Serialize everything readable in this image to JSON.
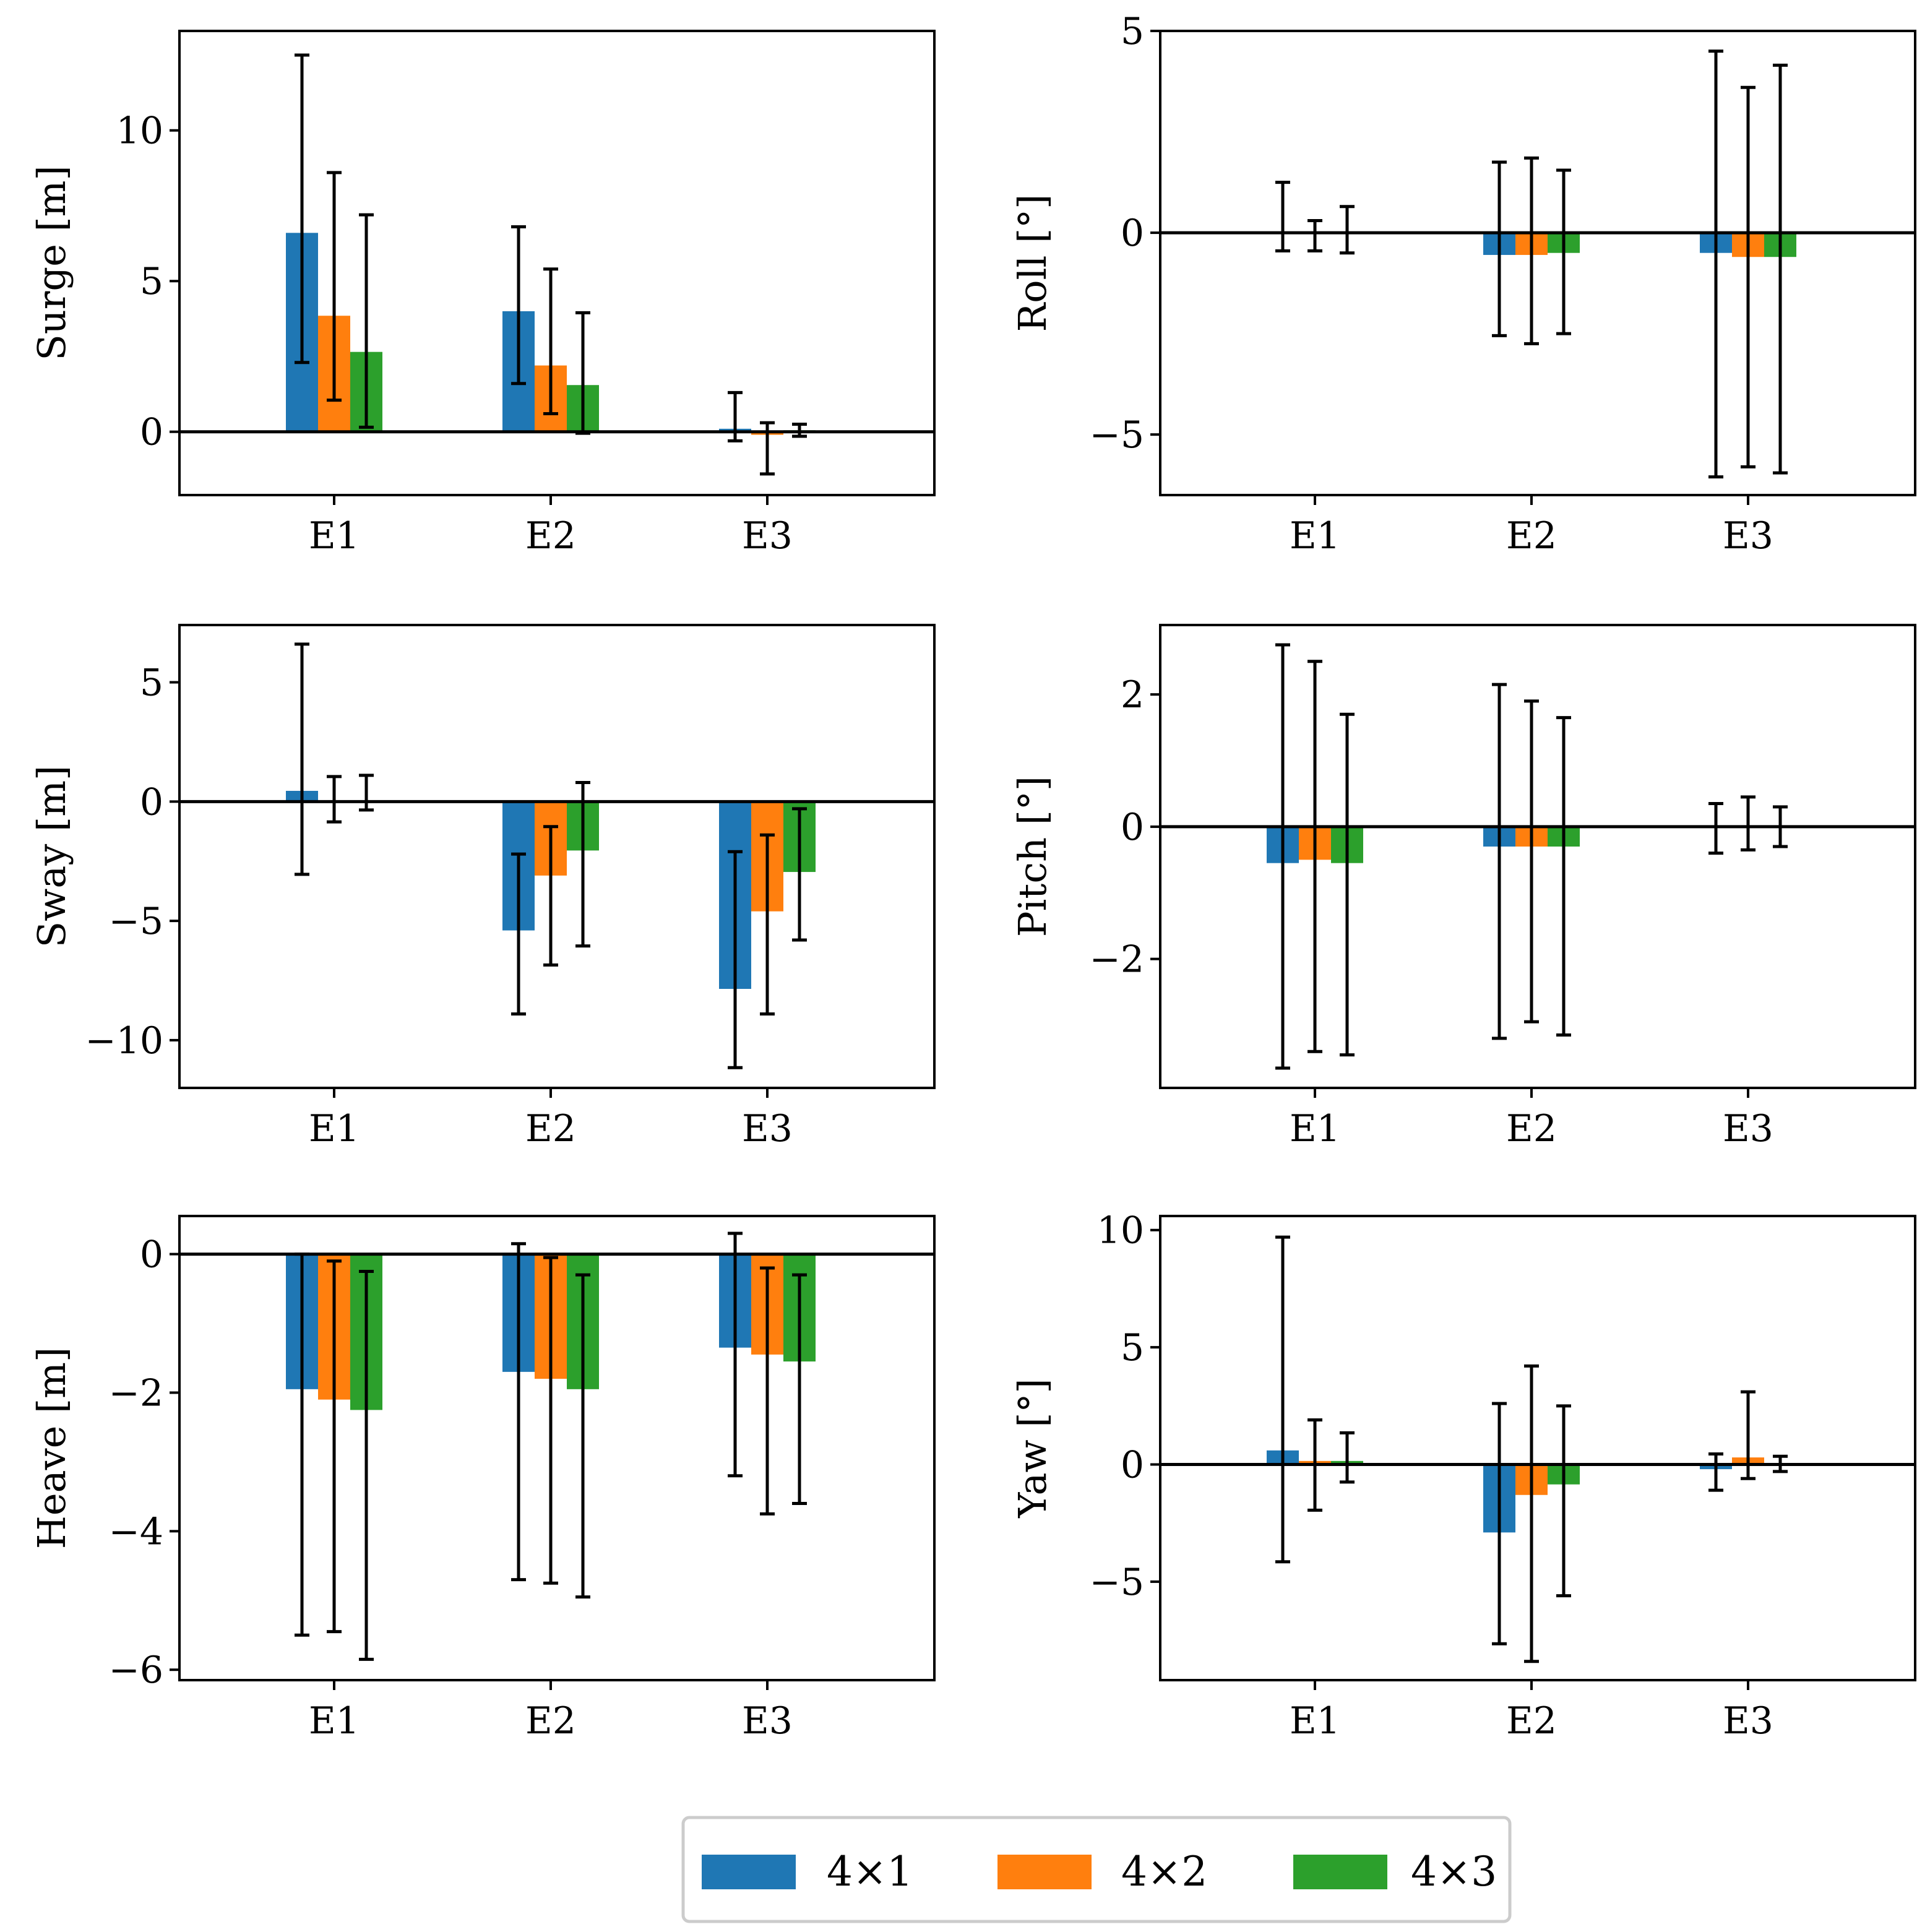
{
  "legend": {
    "entries": [
      {
        "label": "4×1",
        "color": "#1f77b4"
      },
      {
        "label": "4×2",
        "color": "#ff7f0e"
      },
      {
        "label": "4×3",
        "color": "#2ca02c"
      }
    ]
  },
  "chart_data": [
    {
      "id": "surge",
      "type": "bar",
      "ylabel": "Surge [m]",
      "categories": [
        "E1",
        "E2",
        "E3"
      ],
      "ylim": [
        -2.1,
        13.3
      ],
      "yticks": [
        0,
        5,
        10
      ],
      "series": [
        {
          "name": "4×1",
          "values": [
            6.6,
            4.0,
            0.1
          ],
          "err_low": [
            2.3,
            1.6,
            -0.3
          ],
          "err_high": [
            12.5,
            6.8,
            1.3
          ]
        },
        {
          "name": "4×2",
          "values": [
            3.85,
            2.2,
            -0.1
          ],
          "err_low": [
            1.05,
            0.6,
            -1.4
          ],
          "err_high": [
            8.6,
            5.4,
            0.3
          ]
        },
        {
          "name": "4×3",
          "values": [
            2.65,
            1.55,
            0.05
          ],
          "err_low": [
            0.15,
            -0.05,
            -0.15
          ],
          "err_high": [
            7.2,
            3.95,
            0.25
          ]
        }
      ]
    },
    {
      "id": "roll",
      "type": "bar",
      "ylabel": "Roll [°]",
      "categories": [
        "E1",
        "E2",
        "E3"
      ],
      "ylim": [
        -6.5,
        5.0
      ],
      "yticks": [
        -5,
        0,
        5
      ],
      "series": [
        {
          "name": "4×1",
          "values": [
            0.0,
            -0.55,
            -0.5
          ],
          "err_low": [
            -0.45,
            -2.55,
            -6.05
          ],
          "err_high": [
            1.25,
            1.75,
            4.5
          ]
        },
        {
          "name": "4×2",
          "values": [
            0.0,
            -0.55,
            -0.6
          ],
          "err_low": [
            -0.45,
            -2.75,
            -5.8
          ],
          "err_high": [
            0.3,
            1.85,
            3.6
          ]
        },
        {
          "name": "4×3",
          "values": [
            0.0,
            -0.5,
            -0.6
          ],
          "err_low": [
            -0.5,
            -2.5,
            -5.95
          ],
          "err_high": [
            0.65,
            1.55,
            4.15
          ]
        }
      ]
    },
    {
      "id": "sway",
      "type": "bar",
      "ylabel": "Sway [m]",
      "categories": [
        "E1",
        "E2",
        "E3"
      ],
      "ylim": [
        -12.0,
        7.4
      ],
      "yticks": [
        -10,
        -5,
        0,
        5
      ],
      "series": [
        {
          "name": "4×1",
          "values": [
            0.45,
            -5.4,
            -7.85
          ],
          "err_low": [
            -3.05,
            -8.9,
            -11.15
          ],
          "err_high": [
            6.6,
            -2.2,
            -2.1
          ]
        },
        {
          "name": "4×2",
          "values": [
            0.0,
            -3.1,
            -4.6
          ],
          "err_low": [
            -0.85,
            -6.85,
            -8.9
          ],
          "err_high": [
            1.05,
            -1.05,
            -1.4
          ]
        },
        {
          "name": "4×3",
          "values": [
            0.05,
            -2.05,
            -2.95
          ],
          "err_low": [
            -0.35,
            -6.05,
            -5.8
          ],
          "err_high": [
            1.1,
            0.8,
            -0.3
          ]
        }
      ]
    },
    {
      "id": "pitch",
      "type": "bar",
      "ylabel": "Pitch [°]",
      "categories": [
        "E1",
        "E2",
        "E3"
      ],
      "ylim": [
        -3.95,
        3.05
      ],
      "yticks": [
        -2,
        0,
        2
      ],
      "series": [
        {
          "name": "4×1",
          "values": [
            -0.55,
            -0.3,
            0.0
          ],
          "err_low": [
            -3.65,
            -3.2,
            -0.4
          ],
          "err_high": [
            2.75,
            2.15,
            0.35
          ]
        },
        {
          "name": "4×2",
          "values": [
            -0.5,
            -0.3,
            0.0
          ],
          "err_low": [
            -3.4,
            -2.95,
            -0.35
          ],
          "err_high": [
            2.5,
            1.9,
            0.45
          ]
        },
        {
          "name": "4×3",
          "values": [
            -0.55,
            -0.3,
            0.0
          ],
          "err_low": [
            -3.45,
            -3.15,
            -0.3
          ],
          "err_high": [
            1.7,
            1.65,
            0.3
          ]
        }
      ]
    },
    {
      "id": "heave",
      "type": "bar",
      "ylabel": "Heave [m]",
      "categories": [
        "E1",
        "E2",
        "E3"
      ],
      "ylim": [
        -6.15,
        0.55
      ],
      "yticks": [
        -6,
        -4,
        -2,
        0
      ],
      "series": [
        {
          "name": "4×1",
          "values": [
            -1.95,
            -1.7,
            -1.35
          ],
          "err_low": [
            -5.5,
            -4.7,
            -3.2
          ],
          "err_high": [
            0.0,
            0.15,
            0.3
          ]
        },
        {
          "name": "4×2",
          "values": [
            -2.1,
            -1.8,
            -1.45
          ],
          "err_low": [
            -5.45,
            -4.75,
            -3.75
          ],
          "err_high": [
            -0.1,
            -0.05,
            -0.2
          ]
        },
        {
          "name": "4×3",
          "values": [
            -2.25,
            -1.95,
            -1.55
          ],
          "err_low": [
            -5.85,
            -4.95,
            -3.6
          ],
          "err_high": [
            -0.25,
            -0.3,
            -0.3
          ]
        }
      ]
    },
    {
      "id": "yaw",
      "type": "bar",
      "ylabel": "Yaw [°]",
      "categories": [
        "E1",
        "E2",
        "E3"
      ],
      "ylim": [
        -9.2,
        10.6
      ],
      "yticks": [
        -5,
        0,
        5,
        10
      ],
      "series": [
        {
          "name": "4×1",
          "values": [
            0.6,
            -2.9,
            -0.2
          ],
          "err_low": [
            -4.15,
            -7.65,
            -1.1
          ],
          "err_high": [
            9.7,
            2.6,
            0.45
          ]
        },
        {
          "name": "4×2",
          "values": [
            0.15,
            -1.3,
            0.3
          ],
          "err_low": [
            -1.95,
            -8.4,
            -0.6
          ],
          "err_high": [
            1.9,
            4.2,
            3.1
          ]
        },
        {
          "name": "4×3",
          "values": [
            0.15,
            -0.85,
            0.0
          ],
          "err_low": [
            -0.75,
            -5.6,
            -0.3
          ],
          "err_high": [
            1.35,
            2.5,
            0.35
          ]
        }
      ]
    }
  ]
}
